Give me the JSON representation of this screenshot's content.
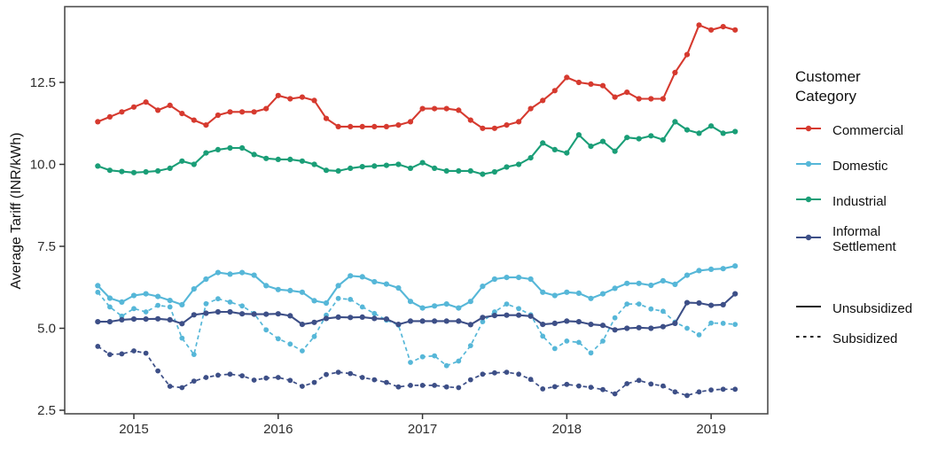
{
  "chart_data": {
    "type": "line",
    "title": "",
    "xlabel": "",
    "ylabel": "Average Tariff (INR/kWh)",
    "ylim": [
      2.39,
      14.8
    ],
    "xlim_years": [
      2014.52,
      2019.39
    ],
    "grid": false,
    "legend_position": "right",
    "x_monthly_range": [
      "2014-10",
      "2019-03"
    ],
    "y_ticks": [
      {
        "value": 2.5,
        "label": "2.5"
      },
      {
        "value": 5.0,
        "label": "5.0"
      },
      {
        "value": 7.5,
        "label": "7.5"
      },
      {
        "value": 10.0,
        "label": "10.0"
      },
      {
        "value": 12.5,
        "label": "12.5"
      }
    ],
    "x_ticks": [
      {
        "year": 2015,
        "label": "2015"
      },
      {
        "year": 2016,
        "label": "2016"
      },
      {
        "year": 2017,
        "label": "2017"
      },
      {
        "year": 2018,
        "label": "2018"
      },
      {
        "year": 2019,
        "label": "2019"
      }
    ],
    "style": {
      "panel_border": "#4d4d4d",
      "tick_color": "#333333",
      "text_color": "#1a1a1a",
      "background": "#ffffff"
    },
    "legend": {
      "title": "Customer\nCategory",
      "categories": [
        {
          "id": "commercial",
          "label": "Commercial",
          "color": "#d63a2f"
        },
        {
          "id": "domestic",
          "label": "Domestic",
          "color": "#56b7d8"
        },
        {
          "id": "industrial",
          "label": "Industrial",
          "color": "#1a9e77"
        },
        {
          "id": "informal-settlement",
          "label": "Informal Settlement",
          "color": "#3d4f87"
        }
      ],
      "linetypes": [
        {
          "id": "unsubsidized",
          "label": "Unsubsidized",
          "style": "solid",
          "color": "#1a1a1a"
        },
        {
          "id": "subsidized",
          "label": "Subsidized",
          "style": "dashed",
          "color": "#1a1a1a"
        }
      ]
    },
    "series": [
      {
        "id": "commercial-unsubsidized",
        "category": "Commercial",
        "subsidy": "Unsubsidized",
        "color": "#d63a2f",
        "dashed": false,
        "values": [
          11.3,
          11.45,
          11.6,
          11.75,
          11.9,
          11.65,
          11.8,
          11.55,
          11.35,
          11.2,
          11.5,
          11.6,
          11.6,
          11.6,
          11.7,
          12.1,
          12.0,
          12.05,
          11.95,
          11.4,
          11.15,
          11.15,
          11.15,
          11.15,
          11.15,
          11.2,
          11.3,
          11.7,
          11.7,
          11.7,
          11.65,
          11.35,
          11.1,
          11.1,
          11.2,
          11.3,
          11.7,
          11.95,
          12.25,
          12.65,
          12.5,
          12.45,
          12.4,
          12.05,
          12.2,
          12.0,
          12.0,
          12.0,
          12.8,
          13.35,
          14.25,
          14.1,
          14.2,
          14.1
        ]
      },
      {
        "id": "industrial-unsubsidized",
        "category": "Industrial",
        "subsidy": "Unsubsidized",
        "color": "#1a9e77",
        "dashed": false,
        "values": [
          9.95,
          9.82,
          9.78,
          9.75,
          9.77,
          9.8,
          9.88,
          10.1,
          10.0,
          10.35,
          10.45,
          10.5,
          10.5,
          10.3,
          10.18,
          10.15,
          10.15,
          10.1,
          10.0,
          9.82,
          9.8,
          9.88,
          9.93,
          9.95,
          9.97,
          10.0,
          9.88,
          10.05,
          9.88,
          9.8,
          9.8,
          9.8,
          9.7,
          9.77,
          9.92,
          10.0,
          10.2,
          10.65,
          10.45,
          10.35,
          10.9,
          10.55,
          10.7,
          10.4,
          10.82,
          10.78,
          10.87,
          10.75,
          11.3,
          11.05,
          10.95,
          11.17,
          10.95,
          11.0
        ]
      },
      {
        "id": "domestic-unsubsidized",
        "category": "Domestic",
        "subsidy": "Unsubsidized",
        "color": "#56b7d8",
        "dashed": false,
        "values": [
          6.3,
          5.92,
          5.8,
          6.0,
          6.05,
          5.97,
          5.85,
          5.72,
          6.2,
          6.5,
          6.7,
          6.65,
          6.7,
          6.62,
          6.3,
          6.18,
          6.15,
          6.1,
          5.84,
          5.77,
          6.3,
          6.6,
          6.57,
          6.42,
          6.35,
          6.23,
          5.82,
          5.62,
          5.68,
          5.74,
          5.62,
          5.82,
          6.28,
          6.5,
          6.55,
          6.55,
          6.5,
          6.1,
          6.0,
          6.1,
          6.07,
          5.91,
          6.05,
          6.22,
          6.37,
          6.37,
          6.31,
          6.45,
          6.34,
          6.62,
          6.76,
          6.8,
          6.82,
          6.9
        ]
      },
      {
        "id": "domestic-subsidized",
        "category": "Domestic",
        "subsidy": "Subsidized",
        "color": "#56b7d8",
        "dashed": true,
        "values": [
          6.1,
          5.65,
          5.37,
          5.6,
          5.5,
          5.7,
          5.65,
          4.7,
          4.2,
          5.75,
          5.9,
          5.8,
          5.68,
          5.45,
          4.95,
          4.68,
          4.52,
          4.31,
          4.75,
          5.4,
          5.91,
          5.88,
          5.65,
          5.45,
          5.25,
          5.1,
          3.96,
          4.13,
          4.16,
          3.86,
          4.0,
          4.47,
          5.2,
          5.5,
          5.74,
          5.6,
          5.41,
          4.76,
          4.38,
          4.61,
          4.57,
          4.25,
          4.61,
          5.32,
          5.74,
          5.74,
          5.59,
          5.52,
          5.19,
          5.0,
          4.8,
          5.16,
          5.15,
          5.12
        ]
      },
      {
        "id": "informal-settlement-unsubsidized",
        "category": "Informal Settlement",
        "subsidy": "Unsubsidized",
        "color": "#3d4f87",
        "dashed": false,
        "values": [
          5.2,
          5.2,
          5.26,
          5.28,
          5.28,
          5.29,
          5.26,
          5.14,
          5.41,
          5.46,
          5.5,
          5.5,
          5.44,
          5.43,
          5.43,
          5.44,
          5.38,
          5.12,
          5.18,
          5.3,
          5.34,
          5.33,
          5.34,
          5.3,
          5.28,
          5.12,
          5.22,
          5.22,
          5.22,
          5.22,
          5.22,
          5.11,
          5.33,
          5.39,
          5.4,
          5.4,
          5.37,
          5.12,
          5.15,
          5.22,
          5.2,
          5.12,
          5.09,
          4.95,
          5.0,
          5.02,
          5.0,
          5.05,
          5.15,
          5.78,
          5.77,
          5.7,
          5.72,
          6.05
        ]
      },
      {
        "id": "informal-settlement-subsidized",
        "category": "Informal Settlement",
        "subsidy": "Subsidized",
        "color": "#3d4f87",
        "dashed": true,
        "values": [
          4.45,
          4.2,
          4.22,
          4.31,
          4.24,
          3.7,
          3.23,
          3.19,
          3.39,
          3.5,
          3.57,
          3.6,
          3.55,
          3.42,
          3.48,
          3.5,
          3.41,
          3.23,
          3.35,
          3.59,
          3.66,
          3.62,
          3.5,
          3.43,
          3.35,
          3.21,
          3.26,
          3.26,
          3.26,
          3.21,
          3.19,
          3.43,
          3.6,
          3.64,
          3.66,
          3.6,
          3.44,
          3.15,
          3.22,
          3.29,
          3.24,
          3.2,
          3.13,
          3.0,
          3.31,
          3.41,
          3.3,
          3.24,
          3.06,
          2.95,
          3.06,
          3.12,
          3.14,
          3.14
        ]
      }
    ]
  }
}
